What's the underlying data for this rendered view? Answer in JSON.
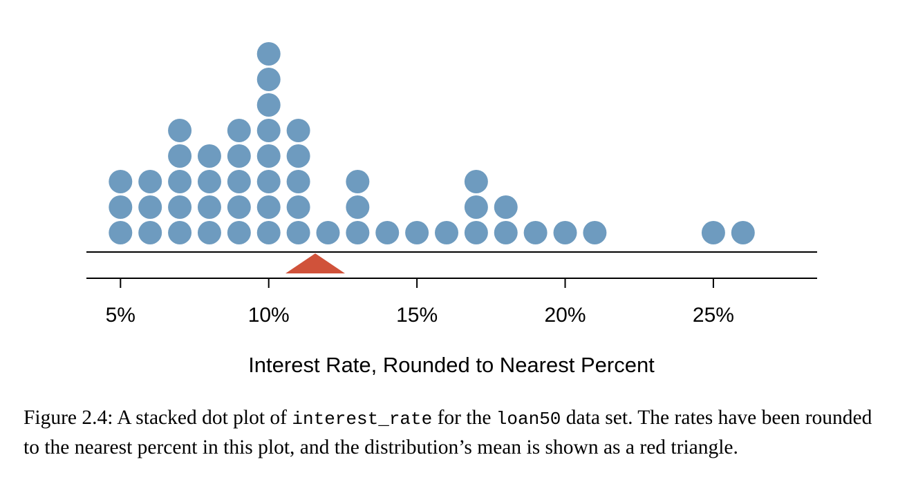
{
  "chart_data": {
    "type": "dot-plot",
    "xlabel": "Interest Rate, Rounded to Nearest Percent",
    "tick_values": [
      5,
      10,
      15,
      20,
      25
    ],
    "tick_labels": [
      "5%",
      "10%",
      "15%",
      "20%",
      "25%"
    ],
    "xlim": [
      3.85,
      28.5
    ],
    "series": [
      {
        "points": [
          {
            "x": 5,
            "count": 3
          },
          {
            "x": 6,
            "count": 3
          },
          {
            "x": 7,
            "count": 5
          },
          {
            "x": 8,
            "count": 4
          },
          {
            "x": 9,
            "count": 5
          },
          {
            "x": 10,
            "count": 8
          },
          {
            "x": 11,
            "count": 5
          },
          {
            "x": 12,
            "count": 1
          },
          {
            "x": 13,
            "count": 3
          },
          {
            "x": 14,
            "count": 1
          },
          {
            "x": 15,
            "count": 1
          },
          {
            "x": 16,
            "count": 1
          },
          {
            "x": 17,
            "count": 3
          },
          {
            "x": 18,
            "count": 2
          },
          {
            "x": 19,
            "count": 1
          },
          {
            "x": 20,
            "count": 1
          },
          {
            "x": 21,
            "count": 1
          },
          {
            "x": 25,
            "count": 1
          },
          {
            "x": 26,
            "count": 1
          }
        ]
      }
    ],
    "mean_marker": {
      "x": 11.57
    },
    "colors": {
      "dot": "#6e9bbf",
      "mean": "#d0523a",
      "axis": "#000000"
    }
  },
  "caption": {
    "prefix": "Figure 2.4:  A stacked dot plot of ",
    "var1": "interest_rate",
    "mid": " for the ",
    "var2": "loan50",
    "suffix": " data set.  The rates have been rounded to the nearest percent in this plot, and the distribution’s mean is shown as a red triangle."
  }
}
